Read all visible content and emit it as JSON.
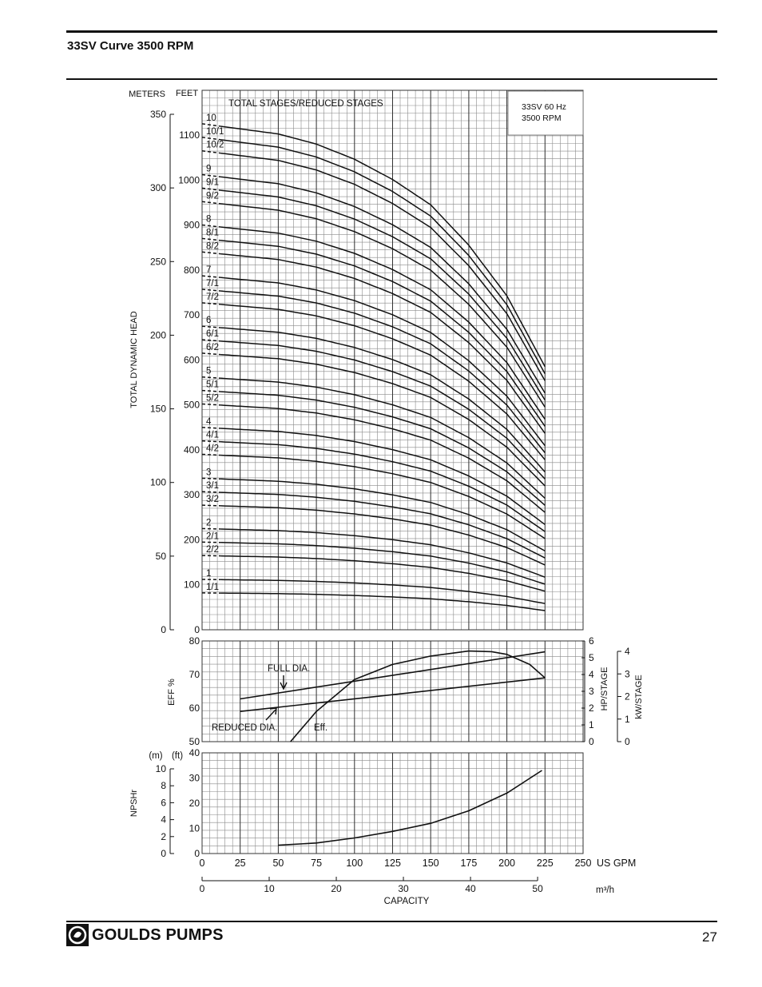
{
  "page": {
    "title": "33SV Curve 3500 RPM",
    "page_number": "27",
    "brand": "GOULDS PUMPS"
  },
  "chart_data": [
    {
      "type": "line",
      "name": "head-curves",
      "legend_box": [
        "33SV  60 Hz",
        "3500 RPM"
      ],
      "series_header": "TOTAL STAGES/REDUCED STAGES",
      "ylabel": "TOTAL DYNAMIC HEAD",
      "y_units_left": "METERS",
      "y_units_right": "FEET",
      "meters_ticks": [
        "0",
        "50",
        "100",
        "150",
        "200",
        "250",
        "300",
        "350"
      ],
      "feet_ticks": [
        "0",
        "100",
        "200",
        "300",
        "400",
        "500",
        "600",
        "700",
        "800",
        "900",
        "1000",
        "1100"
      ],
      "ylim_ft": [
        0,
        1150
      ],
      "xlim_gpm": [
        0,
        250
      ],
      "curve_shape_gpm": [
        0,
        25,
        50,
        75,
        100,
        125,
        150,
        175,
        200,
        225
      ],
      "curve_shape_fraction": [
        1.0,
        0.99,
        0.98,
        0.96,
        0.93,
        0.89,
        0.84,
        0.76,
        0.66,
        0.52
      ],
      "series": [
        {
          "name": "10",
          "shutoff_ft": 1125
        },
        {
          "name": "10/1",
          "shutoff_ft": 1095
        },
        {
          "name": "10/2",
          "shutoff_ft": 1065
        },
        {
          "name": "9",
          "shutoff_ft": 1012
        },
        {
          "name": "9/1",
          "shutoff_ft": 982
        },
        {
          "name": "9/2",
          "shutoff_ft": 952
        },
        {
          "name": "8",
          "shutoff_ft": 900
        },
        {
          "name": "8/1",
          "shutoff_ft": 870
        },
        {
          "name": "8/2",
          "shutoff_ft": 840
        },
        {
          "name": "7",
          "shutoff_ft": 787
        },
        {
          "name": "7/1",
          "shutoff_ft": 757
        },
        {
          "name": "7/2",
          "shutoff_ft": 727
        },
        {
          "name": "6",
          "shutoff_ft": 675
        },
        {
          "name": "6/1",
          "shutoff_ft": 645
        },
        {
          "name": "6/2",
          "shutoff_ft": 615
        },
        {
          "name": "5",
          "shutoff_ft": 562
        },
        {
          "name": "5/1",
          "shutoff_ft": 532
        },
        {
          "name": "5/2",
          "shutoff_ft": 502
        },
        {
          "name": "4",
          "shutoff_ft": 450
        },
        {
          "name": "4/1",
          "shutoff_ft": 420
        },
        {
          "name": "4/2",
          "shutoff_ft": 390
        },
        {
          "name": "3",
          "shutoff_ft": 337
        },
        {
          "name": "3/1",
          "shutoff_ft": 307
        },
        {
          "name": "3/2",
          "shutoff_ft": 277
        },
        {
          "name": "2",
          "shutoff_ft": 225
        },
        {
          "name": "2/1",
          "shutoff_ft": 195
        },
        {
          "name": "2/2",
          "shutoff_ft": 165
        },
        {
          "name": "1",
          "shutoff_ft": 112
        },
        {
          "name": "1/1",
          "shutoff_ft": 82
        }
      ]
    },
    {
      "type": "line",
      "name": "efficiency-power",
      "ylabel_left": "EFF %",
      "eff_ticks": [
        "50",
        "60",
        "70",
        "80"
      ],
      "hp_ticks": [
        "0",
        "1",
        "2",
        "3",
        "4",
        "5",
        "6"
      ],
      "hp_label": "HP/STAGE",
      "kw_ticks": [
        "0",
        "1",
        "2",
        "3",
        "4"
      ],
      "kw_label": "kW/STAGE",
      "labels": {
        "full": "FULL DIA.",
        "reduced": "REDUCED DIA.",
        "eff": "Eff."
      },
      "efficiency": {
        "x_gpm": [
          58,
          75,
          100,
          125,
          150,
          175,
          190,
          200,
          215,
          225
        ],
        "y_pct": [
          50,
          59,
          68.5,
          73,
          75.5,
          77,
          76.8,
          76,
          73,
          69
        ]
      },
      "hp_full": {
        "x_gpm": [
          25,
          225
        ],
        "y_hp": [
          2.55,
          5.35
        ]
      },
      "hp_reduced": {
        "x_gpm": [
          25,
          225
        ],
        "y_hp": [
          1.8,
          3.8
        ]
      }
    },
    {
      "type": "line",
      "name": "npshr",
      "ylabel": "NPSHr",
      "m_label": "(m)",
      "ft_label": "(ft)",
      "m_ticks": [
        "0",
        "2",
        "4",
        "6",
        "8",
        "10"
      ],
      "ft_ticks": [
        "0",
        "10",
        "20",
        "30",
        "40"
      ],
      "x_gpm": [
        50,
        75,
        100,
        125,
        150,
        175,
        200,
        223
      ],
      "y_ft": [
        3.3,
        4.2,
        6.2,
        8.8,
        12,
        17,
        24,
        33
      ]
    },
    {
      "type": "axis",
      "name": "capacity",
      "gpm_ticks": [
        "0",
        "25",
        "50",
        "75",
        "100",
        "125",
        "150",
        "175",
        "200",
        "225",
        "250"
      ],
      "gpm_unit": "US GPM",
      "m3h_ticks": [
        "0",
        "10",
        "20",
        "30",
        "40",
        "50"
      ],
      "m3h_unit": "m³/h",
      "xlabel": "CAPACITY"
    }
  ]
}
